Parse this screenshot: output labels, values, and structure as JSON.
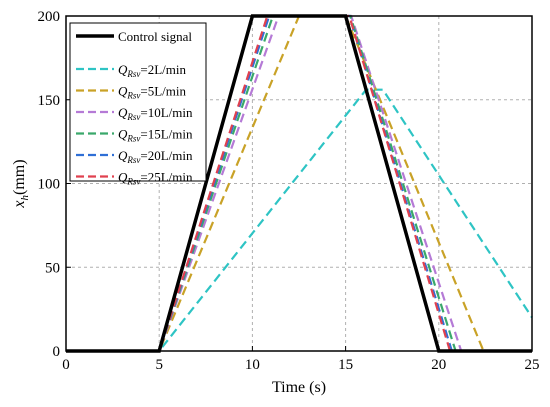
{
  "chart_data": {
    "type": "line",
    "xlabel": "Time (s)",
    "ylabel_main": "x",
    "ylabel_sub": "h",
    "ylabel_unit": "(mm)",
    "xlim": [
      0,
      25
    ],
    "ylim": [
      0,
      200
    ],
    "xticks": [
      0,
      5,
      10,
      15,
      20,
      25
    ],
    "yticks": [
      0,
      50,
      100,
      150,
      200
    ],
    "grid": true,
    "legend_position": "top-left",
    "control": {
      "name": "Control signal",
      "color": "#000000",
      "x": [
        0,
        5,
        10,
        15,
        20,
        25
      ],
      "y": [
        0,
        0,
        200,
        200,
        0,
        0
      ]
    },
    "series": [
      {
        "label_main": "Q",
        "label_sub": "Rsv",
        "label_rest": "=2L/min",
        "color": "#2ec4c4",
        "x": [
          0,
          5,
          16.1,
          17,
          25
        ],
        "y": [
          0,
          0,
          156,
          156,
          20
        ]
      },
      {
        "label_main": "Q",
        "label_sub": "Rsv",
        "label_rest": "=5L/min",
        "color": "#c9a227",
        "x": [
          0,
          5,
          12.5,
          15,
          22.4,
          25
        ],
        "y": [
          0,
          0,
          200,
          200,
          0,
          0
        ]
      },
      {
        "label_main": "Q",
        "label_sub": "Rsv",
        "label_rest": "=10L/min",
        "color": "#b57ad6",
        "x": [
          0,
          5,
          11.4,
          15.3,
          21.2,
          25
        ],
        "y": [
          0,
          0,
          200,
          200,
          0,
          0
        ]
      },
      {
        "label_main": "Q",
        "label_sub": "Rsv",
        "label_rest": "=15L/min",
        "color": "#3aa86b",
        "x": [
          0,
          5,
          11.1,
          15.25,
          20.9,
          25
        ],
        "y": [
          0,
          0,
          200,
          200,
          0,
          0
        ]
      },
      {
        "label_main": "Q",
        "label_sub": "Rsv",
        "label_rest": "=20L/min",
        "color": "#2f6fd6",
        "x": [
          0,
          5,
          10.9,
          15.2,
          20.7,
          25
        ],
        "y": [
          0,
          0,
          200,
          200,
          0,
          0
        ]
      },
      {
        "label_main": "Q",
        "label_sub": "Rsv",
        "label_rest": "=25L/min",
        "color": "#e0414f",
        "x": [
          0,
          5,
          10.8,
          15.2,
          20.6,
          25
        ],
        "y": [
          0,
          0,
          200,
          200,
          0,
          0
        ]
      }
    ]
  }
}
